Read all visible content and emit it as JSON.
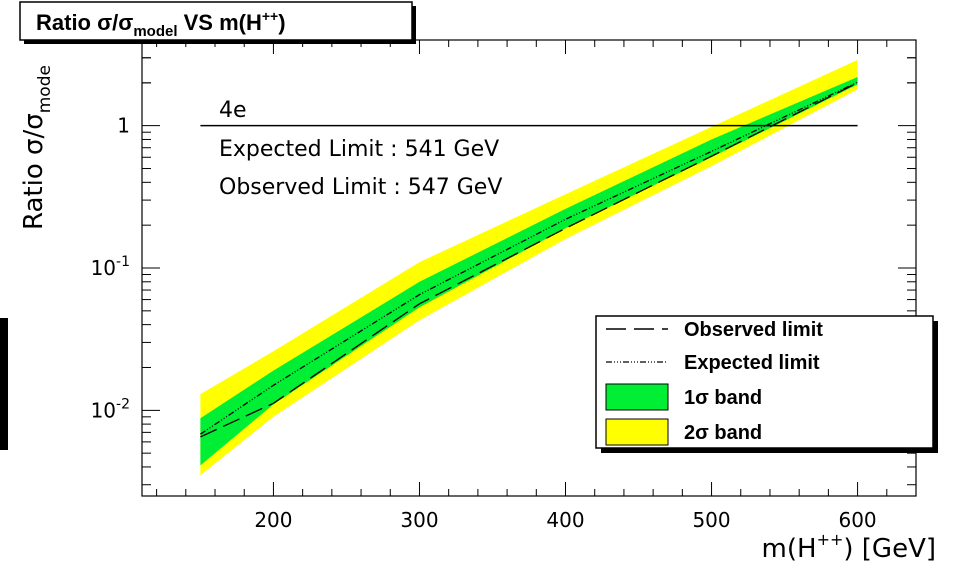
{
  "chart_data": {
    "type": "area",
    "title": "Ratio σ/σ_model VS m(H++)",
    "title_parts": {
      "main": "Ratio σ/σ",
      "sub": "model",
      "rest": " VS m(H",
      "sup": "++",
      "close": ")"
    },
    "xlabel": "m(H++) [GeV]",
    "xlabel_parts": {
      "main": "m(H",
      "sup": "++",
      "rest": ") [GeV]"
    },
    "ylabel": "Ratio σ/σ_mode",
    "ylabel_parts": {
      "main": "Ratio σ/σ",
      "sub": "mode"
    },
    "x_scale": "linear",
    "y_scale": "log",
    "xlim": [
      110,
      640
    ],
    "ylim": [
      0.0025,
      4.0
    ],
    "x_ticks": [
      200,
      300,
      400,
      500,
      600
    ],
    "x_tick_labels": [
      "200",
      "300",
      "400",
      "500",
      "600"
    ],
    "y_ticks": [
      0.01,
      0.1,
      1
    ],
    "y_tick_labels": [
      {
        "base": "10",
        "exp": "-2"
      },
      {
        "base": "10",
        "exp": "-1"
      },
      {
        "base": "1",
        "exp": ""
      }
    ],
    "annotations": [
      "4e",
      "Expected Limit : 541 GeV",
      "Observed Limit : 547 GeV"
    ],
    "reference_line": {
      "y": 1,
      "x_range": [
        150,
        600
      ]
    },
    "x": [
      150,
      200,
      300,
      400,
      500,
      600
    ],
    "series": [
      {
        "name": "2σ band",
        "kind": "band",
        "color": "#ffff00",
        "lower": [
          0.0035,
          0.009,
          0.043,
          0.16,
          0.52,
          1.8
        ],
        "upper": [
          0.013,
          0.026,
          0.11,
          0.33,
          0.98,
          2.9
        ]
      },
      {
        "name": "1σ band",
        "kind": "band",
        "color": "#00ee33",
        "lower": [
          0.0041,
          0.011,
          0.053,
          0.19,
          0.6,
          1.95
        ],
        "upper": [
          0.0088,
          0.019,
          0.08,
          0.26,
          0.8,
          2.2
        ]
      },
      {
        "name": "Expected limit",
        "kind": "line",
        "style": "dash-dot",
        "values": [
          0.0068,
          0.015,
          0.065,
          0.22,
          0.66,
          2.02
        ]
      },
      {
        "name": "Observed limit",
        "kind": "line",
        "style": "long-dash",
        "values": [
          0.0065,
          0.0112,
          0.056,
          0.19,
          0.61,
          2.0
        ]
      }
    ],
    "legend_position": "bottom-right",
    "grid": false
  }
}
